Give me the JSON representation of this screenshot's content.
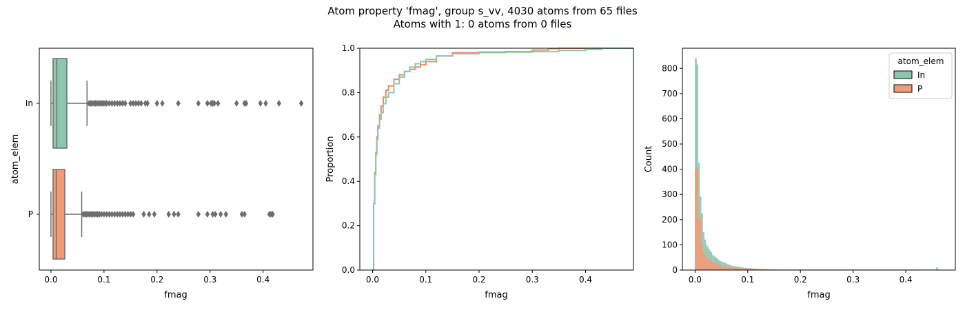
{
  "title_line1": "Atom property 'fmag', group s_vv, 4030 atoms from 65 files",
  "title_line2": "Atoms with 1: 0 atoms from 0 files",
  "colors": {
    "In": "#8dc6b0",
    "P": "#f39b78",
    "In_line": "#8dc6b0",
    "P_line": "#f08a62",
    "box_edge": "#6e6e6e"
  },
  "chart_data": [
    {
      "type": "box",
      "orientation": "horizontal",
      "xlabel": "fmag",
      "ylabel": "atom_elem",
      "xlim": [
        -0.022,
        0.494
      ],
      "xticks": [
        "0.0",
        "0.1",
        "0.2",
        "0.3",
        "0.4"
      ],
      "xtick_values": [
        0,
        0.1,
        0.2,
        0.3,
        0.4
      ],
      "categories": [
        "In",
        "P"
      ],
      "series": [
        {
          "category": "In",
          "min": 0.0,
          "q1": 0.004,
          "median": 0.011,
          "q3": 0.03,
          "whisker_high": 0.068,
          "outliers": [
            0.072,
            0.075,
            0.078,
            0.081,
            0.084,
            0.087,
            0.09,
            0.093,
            0.096,
            0.099,
            0.102,
            0.105,
            0.11,
            0.115,
            0.12,
            0.125,
            0.13,
            0.135,
            0.14,
            0.15,
            0.155,
            0.16,
            0.165,
            0.17,
            0.178,
            0.182,
            0.2,
            0.21,
            0.24,
            0.278,
            0.295,
            0.302,
            0.305,
            0.308,
            0.315,
            0.35,
            0.365,
            0.368,
            0.395,
            0.405,
            0.43,
            0.472
          ]
        },
        {
          "category": "P",
          "min": 0.0,
          "q1": 0.004,
          "median": 0.01,
          "q3": 0.026,
          "whisker_high": 0.058,
          "outliers": [
            0.061,
            0.064,
            0.067,
            0.07,
            0.073,
            0.076,
            0.079,
            0.082,
            0.085,
            0.088,
            0.091,
            0.095,
            0.1,
            0.105,
            0.11,
            0.115,
            0.12,
            0.125,
            0.13,
            0.135,
            0.14,
            0.145,
            0.15,
            0.155,
            0.175,
            0.185,
            0.195,
            0.222,
            0.232,
            0.24,
            0.278,
            0.295,
            0.305,
            0.31,
            0.32,
            0.33,
            0.36,
            0.365,
            0.412,
            0.415,
            0.418
          ]
        }
      ]
    },
    {
      "type": "line",
      "subtype": "ecdf",
      "xlabel": "fmag",
      "ylabel": "Proportion",
      "xlim": [
        -0.024,
        0.49
      ],
      "ylim": [
        0.0,
        1.0
      ],
      "xticks": [
        "0.0",
        "0.1",
        "0.2",
        "0.3",
        "0.4"
      ],
      "xtick_values": [
        0,
        0.1,
        0.2,
        0.3,
        0.4
      ],
      "yticks": [
        "0.0",
        "0.2",
        "0.4",
        "0.6",
        "0.8",
        "1.0"
      ],
      "ytick_values": [
        0,
        0.2,
        0.4,
        0.6,
        0.8,
        1.0
      ],
      "series": [
        {
          "category": "P",
          "x": [
            0,
            0.002,
            0.004,
            0.006,
            0.008,
            0.01,
            0.013,
            0.016,
            0.02,
            0.025,
            0.03,
            0.04,
            0.05,
            0.06,
            0.07,
            0.08,
            0.09,
            0.1,
            0.12,
            0.15,
            0.2,
            0.25,
            0.3,
            0.33,
            0.35,
            0.4,
            0.42
          ],
          "y": [
            0,
            0.3,
            0.44,
            0.53,
            0.6,
            0.65,
            0.7,
            0.74,
            0.78,
            0.81,
            0.83,
            0.86,
            0.88,
            0.895,
            0.905,
            0.915,
            0.925,
            0.94,
            0.965,
            0.98,
            0.983,
            0.985,
            0.992,
            0.998,
            1.0,
            1.0,
            1.0
          ]
        },
        {
          "category": "In",
          "x": [
            0,
            0.002,
            0.004,
            0.006,
            0.008,
            0.01,
            0.013,
            0.016,
            0.02,
            0.025,
            0.03,
            0.04,
            0.05,
            0.06,
            0.07,
            0.08,
            0.09,
            0.1,
            0.12,
            0.15,
            0.2,
            0.25,
            0.3,
            0.35,
            0.4,
            0.43,
            0.475
          ],
          "y": [
            0,
            0.3,
            0.43,
            0.52,
            0.59,
            0.64,
            0.68,
            0.71,
            0.75,
            0.78,
            0.8,
            0.84,
            0.87,
            0.895,
            0.915,
            0.93,
            0.94,
            0.95,
            0.965,
            0.975,
            0.98,
            0.982,
            0.985,
            0.99,
            0.995,
            1.0,
            1.0
          ]
        }
      ]
    },
    {
      "type": "bar",
      "subtype": "histogram",
      "xlabel": "fmag",
      "ylabel": "Count",
      "xlim": [
        -0.024,
        0.494
      ],
      "ylim": [
        0,
        880
      ],
      "xticks": [
        "0.0",
        "0.1",
        "0.2",
        "0.3",
        "0.4"
      ],
      "xtick_values": [
        0,
        0.1,
        0.2,
        0.3,
        0.4
      ],
      "yticks": [
        "0",
        "100",
        "200",
        "300",
        "400",
        "500",
        "600",
        "700",
        "800"
      ],
      "ytick_values": [
        0,
        100,
        200,
        300,
        400,
        500,
        600,
        700,
        800
      ],
      "legend_title": "atom_elem",
      "legend_placement": "top-right",
      "legend": [
        "In",
        "P"
      ],
      "bin_width": 0.0029,
      "bin_start": 0.0,
      "series": [
        {
          "category": "In",
          "values": [
            840,
            815,
            425,
            290,
            225,
            150,
            120,
            100,
            90,
            80,
            70,
            60,
            55,
            50,
            45,
            40,
            35,
            32,
            30,
            28,
            25,
            22,
            20,
            18,
            16,
            15,
            14,
            13,
            12,
            11,
            10,
            9,
            8,
            8,
            7,
            7,
            6,
            6,
            5,
            5,
            5,
            4,
            4,
            4,
            3,
            3,
            3,
            3,
            2,
            2,
            2,
            2,
            2,
            2,
            1,
            1,
            1,
            1,
            1,
            1,
            1,
            1,
            1,
            1,
            1,
            1,
            1,
            1,
            1,
            1,
            1,
            1,
            1,
            1,
            1,
            1,
            1,
            1,
            1,
            1,
            1,
            1,
            1,
            1,
            1,
            1,
            1,
            1,
            1,
            1,
            1,
            1,
            1,
            1,
            1,
            1,
            1,
            1,
            1,
            1,
            1,
            1,
            1,
            1,
            1,
            1,
            1,
            1,
            1,
            1,
            1,
            1,
            1,
            1,
            1,
            1,
            1,
            1,
            1,
            1,
            1,
            1,
            1,
            1,
            1,
            1,
            1,
            1,
            1,
            1,
            1,
            1,
            1,
            1,
            1,
            1,
            1,
            1,
            1,
            1,
            1,
            1,
            1,
            1,
            1,
            1,
            1,
            1,
            1,
            1,
            1,
            1,
            1,
            1,
            1,
            1,
            1,
            1,
            10
          ]
        },
        {
          "category": "P",
          "values": [
            400,
            405,
            210,
            200,
            100,
            70,
            60,
            50,
            45,
            40,
            35,
            30,
            28,
            25,
            22,
            20,
            18,
            16,
            15,
            14,
            13,
            12,
            11,
            10,
            9,
            8,
            8,
            7,
            7,
            6,
            6,
            5,
            5,
            5,
            4,
            4,
            4,
            3,
            3,
            3,
            3,
            2,
            2,
            2,
            2,
            2,
            2,
            1,
            1,
            1,
            1,
            1,
            1,
            1,
            1,
            1,
            1,
            1,
            1,
            1,
            1,
            1,
            1,
            1,
            1,
            1,
            1,
            1,
            1,
            1,
            1,
            1,
            1,
            1,
            1,
            1,
            1,
            1,
            1,
            1,
            1,
            1,
            1,
            1,
            1,
            1,
            1,
            1,
            1,
            1,
            1,
            1,
            1,
            1,
            1,
            1,
            1,
            1,
            1,
            1,
            1,
            1,
            1,
            1,
            1,
            1,
            1,
            1,
            1,
            1,
            1,
            1,
            1,
            1,
            1,
            1,
            1,
            1,
            1,
            1,
            1,
            1,
            1,
            1,
            1,
            1,
            1,
            1,
            1,
            1,
            1,
            1,
            1,
            1,
            1,
            1,
            1,
            1,
            1,
            1,
            1,
            1,
            1,
            1,
            1,
            1
          ]
        }
      ]
    }
  ]
}
